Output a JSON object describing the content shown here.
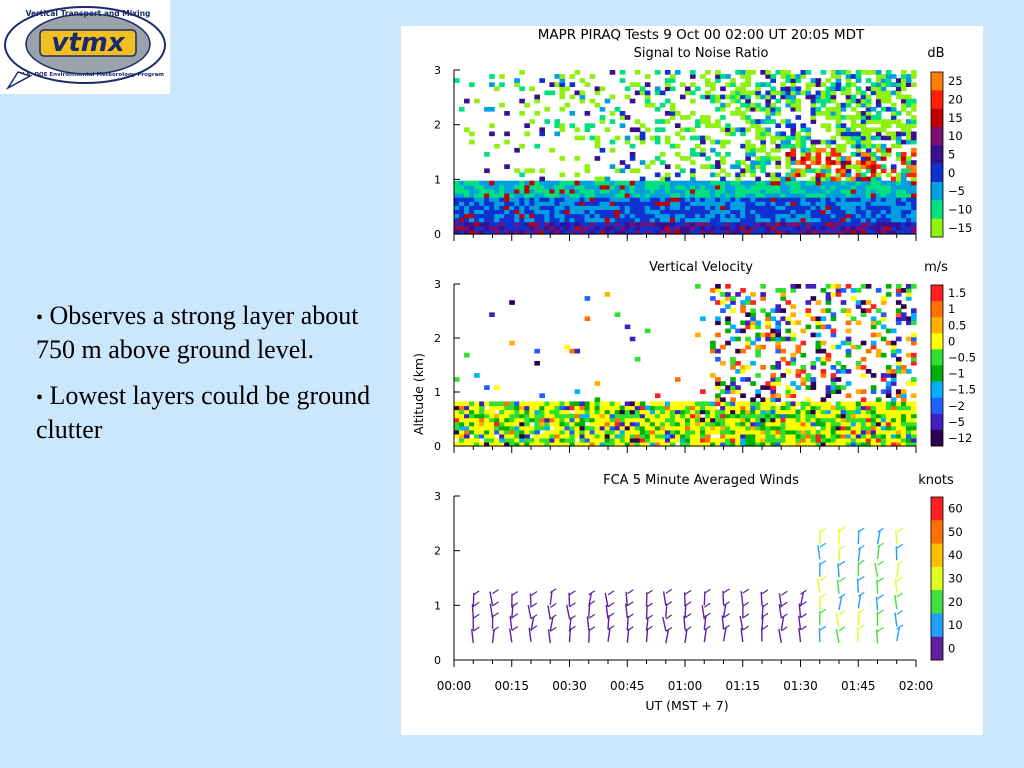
{
  "logo": {
    "arc_text": "Vertical Transport and Mixing",
    "acronym": "vtmx",
    "bottom_text": "U.S. DOE Environmental Meteorology Program",
    "colors": {
      "navy": "#1b2a6b",
      "gold": "#f0c020",
      "gray": "#9aa3aa"
    }
  },
  "bullets": [
    {
      "marker": "•",
      "text": "Observes a strong layer about 750 m above ground level."
    },
    {
      "marker": "•",
      "text": "Lowest layers could be ground clutter"
    }
  ],
  "figure": {
    "title_line1": "MAPR PIRAQ Tests   9 Oct 00   02:00 UT   20:05   MDT",
    "xlabel": "UT  (MST + 7)",
    "x_ticks": [
      "00:00",
      "00:15",
      "00:30",
      "00:45",
      "01:00",
      "01:15",
      "01:30",
      "01:45",
      "02:00"
    ],
    "y_ticks": [
      "0",
      "1",
      "2",
      "3"
    ],
    "ylabel": "Altitude  (km)"
  },
  "chart_data": [
    {
      "type": "heatmap",
      "title": "Signal to Noise Ratio",
      "unit": "dB",
      "x_range": [
        "00:00",
        "02:00"
      ],
      "ylim": [
        0,
        3
      ],
      "colorbar": {
        "labels": [
          "25",
          "20",
          "15",
          "10",
          "5",
          "0",
          "−5",
          "−10",
          "−15"
        ],
        "colors": [
          "#ff8000",
          "#ff2000",
          "#c00000",
          "#7a1070",
          "#3a1090",
          "#1030d0",
          "#00a0e0",
          "#00e080",
          "#90f010"
        ]
      },
      "summary": "Strong layer between ~0.3 and ~1 km; noisy returns above"
    },
    {
      "type": "heatmap",
      "title": "Vertical Velocity",
      "unit": "m/s",
      "x_range": [
        "00:00",
        "02:00"
      ],
      "ylim": [
        0,
        3
      ],
      "colorbar": {
        "labels": [
          "1.5",
          "1",
          "0.5",
          "0",
          "−0.5",
          "−1",
          "−1.5",
          "−2",
          "−5",
          "−12"
        ],
        "colors": [
          "#ff2020",
          "#ff7000",
          "#ffb000",
          "#ffff00",
          "#30e030",
          "#00b000",
          "#00b0ff",
          "#2060ff",
          "#4020c0",
          "#300050"
        ]
      }
    },
    {
      "type": "scatter",
      "title": "FCA 5 Minute Averaged Winds",
      "unit": "knots",
      "x_range": [
        "00:00",
        "02:00"
      ],
      "ylim": [
        0,
        3
      ],
      "colorbar": {
        "labels": [
          "60",
          "50",
          "40",
          "30",
          "20",
          "10",
          "0"
        ],
        "colors": [
          "#ff2020",
          "#ff7000",
          "#ffc000",
          "#e0ff20",
          "#40e040",
          "#20a0ff",
          "#6020a0"
        ]
      },
      "profile_times": [
        "00:05",
        "00:10",
        "00:15",
        "00:20",
        "00:25",
        "00:30",
        "00:35",
        "00:40",
        "00:45",
        "00:50",
        "00:55",
        "01:00",
        "01:05",
        "01:10",
        "01:15",
        "01:20",
        "01:25",
        "01:30",
        "01:35",
        "01:40",
        "01:45",
        "01:50",
        "01:55"
      ]
    }
  ]
}
